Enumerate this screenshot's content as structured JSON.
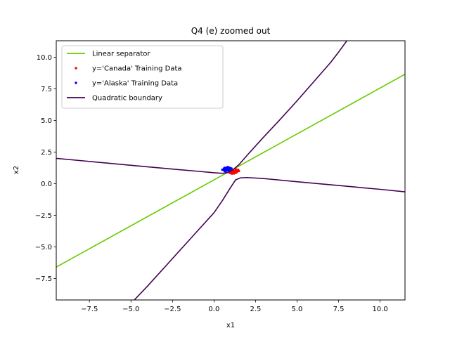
{
  "chart_data": {
    "type": "line",
    "title": "Q4 (e) zoomed out",
    "xlabel": "x1",
    "ylabel": "x2",
    "xlim": [
      -9.5,
      11.5
    ],
    "ylim": [
      -9.2,
      11.3
    ],
    "x_ticks": [
      -7.5,
      -5.0,
      -2.5,
      0.0,
      2.5,
      5.0,
      7.5,
      10.0
    ],
    "x_tick_labels": [
      "−7.5",
      "−5.0",
      "−2.5",
      "0.0",
      "2.5",
      "5.0",
      "7.5",
      "10.0"
    ],
    "y_ticks": [
      -7.5,
      -5.0,
      -2.5,
      0.0,
      2.5,
      5.0,
      7.5,
      10.0
    ],
    "y_tick_labels": [
      "−7.5",
      "−5.0",
      "−2.5",
      "0.0",
      "2.5",
      "5.0",
      "7.5",
      "10.0"
    ],
    "grid": false,
    "legend_position": "top-left",
    "series": [
      {
        "name": "Linear separator",
        "kind": "line",
        "color": "#66cc00",
        "points": [
          [
            -9.5,
            -6.6
          ],
          [
            11.5,
            8.65
          ]
        ]
      },
      {
        "name": "y='Canada' Training Data",
        "kind": "scatter",
        "color": "#ff0000",
        "points": [
          [
            0.95,
            0.85
          ],
          [
            1.05,
            0.95
          ],
          [
            1.15,
            1.05
          ],
          [
            1.2,
            0.9
          ],
          [
            1.25,
            1.0
          ],
          [
            1.3,
            0.85
          ],
          [
            1.35,
            1.05
          ],
          [
            1.4,
            0.95
          ],
          [
            1.45,
            1.1
          ],
          [
            1.5,
            1.0
          ],
          [
            1.1,
            0.8
          ],
          [
            1.0,
            1.0
          ],
          [
            1.3,
            1.15
          ],
          [
            1.2,
            0.8
          ],
          [
            1.15,
            0.9
          ],
          [
            1.05,
            0.8
          ],
          [
            1.35,
            0.9
          ],
          [
            1.45,
            1.0
          ]
        ]
      },
      {
        "name": "y='Alaska' Training Data",
        "kind": "scatter",
        "color": "#0000ff",
        "points": [
          [
            0.5,
            1.1
          ],
          [
            0.6,
            1.2
          ],
          [
            0.65,
            1.0
          ],
          [
            0.7,
            1.15
          ],
          [
            0.75,
            1.25
          ],
          [
            0.8,
            1.05
          ],
          [
            0.85,
            1.2
          ],
          [
            0.9,
            1.1
          ],
          [
            0.95,
            1.25
          ],
          [
            1.0,
            1.15
          ],
          [
            0.7,
            0.95
          ],
          [
            0.8,
            1.3
          ],
          [
            0.6,
            1.05
          ],
          [
            0.9,
            1.0
          ],
          [
            0.75,
            1.1
          ],
          [
            0.65,
            1.25
          ],
          [
            1.05,
            1.2
          ],
          [
            0.85,
            1.3
          ]
        ]
      },
      {
        "name": "Quadratic boundary",
        "kind": "line",
        "color": "#440154",
        "segments": [
          [
            [
              -9.5,
              2.0
            ],
            [
              -5.0,
              1.45
            ],
            [
              -2.5,
              1.15
            ],
            [
              -1.0,
              0.98
            ],
            [
              0.0,
              0.86
            ],
            [
              0.5,
              0.82
            ],
            [
              0.8,
              0.86
            ],
            [
              1.1,
              1.05
            ],
            [
              1.5,
              1.5
            ],
            [
              2.0,
              2.25
            ],
            [
              3.0,
              3.7
            ],
            [
              4.0,
              5.1
            ],
            [
              5.0,
              6.55
            ],
            [
              6.0,
              8.05
            ],
            [
              7.0,
              9.55
            ],
            [
              7.5,
              10.4
            ],
            [
              8.0,
              11.3
            ]
          ],
          [
            [
              -4.8,
              -9.2
            ],
            [
              -4.0,
              -8.1
            ],
            [
              -3.0,
              -6.65
            ],
            [
              -2.0,
              -5.2
            ],
            [
              -1.0,
              -3.75
            ],
            [
              0.0,
              -2.3
            ],
            [
              0.5,
              -1.35
            ],
            [
              1.0,
              -0.3
            ],
            [
              1.3,
              0.3
            ],
            [
              1.6,
              0.46
            ],
            [
              2.0,
              0.48
            ],
            [
              3.0,
              0.4
            ],
            [
              5.0,
              0.15
            ],
            [
              7.5,
              -0.15
            ],
            [
              10.0,
              -0.45
            ],
            [
              11.5,
              -0.65
            ]
          ]
        ]
      }
    ]
  }
}
